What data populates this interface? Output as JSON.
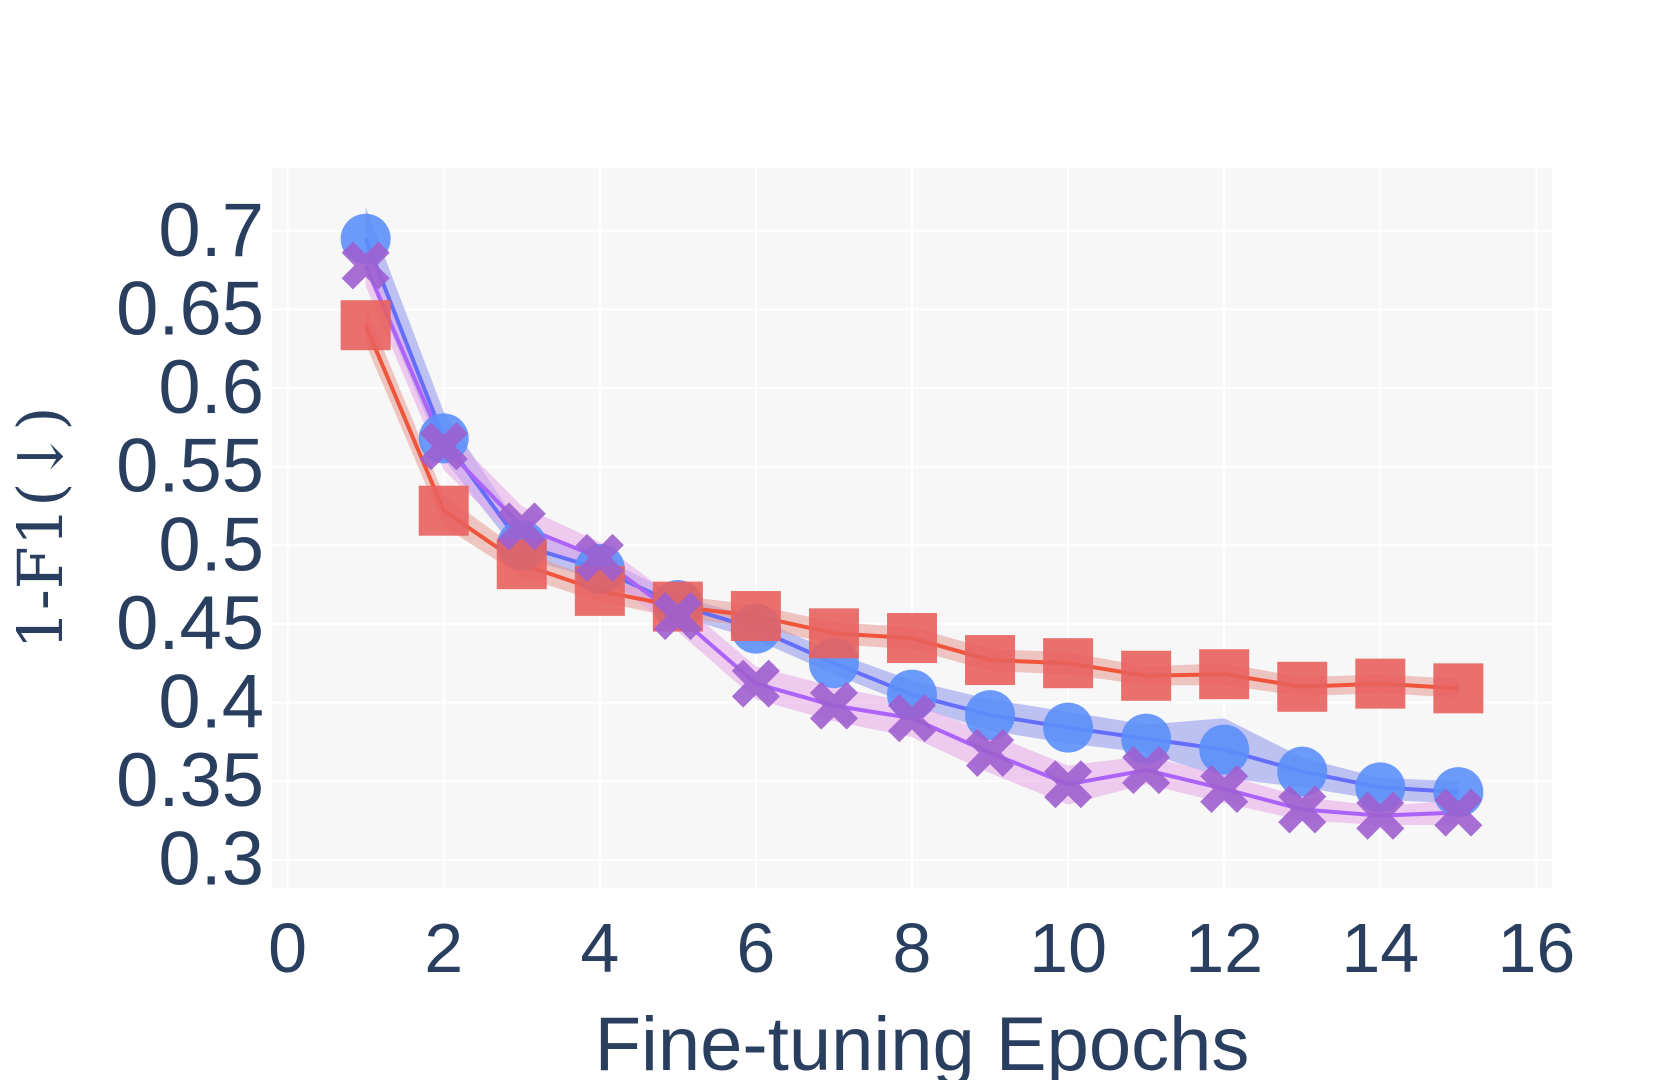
{
  "chart_data": {
    "type": "line",
    "title": "",
    "xlabel": "Fine-tuning Epochs",
    "ylabel": "1-F1(↓)",
    "xlim": [
      -0.2,
      16.2
    ],
    "ylim": [
      0.282,
      0.74
    ],
    "xticks": [
      0,
      2,
      4,
      6,
      8,
      10,
      12,
      14,
      16
    ],
    "yticks": [
      0.3,
      0.35,
      0.4,
      0.45,
      0.5,
      0.55,
      0.6,
      0.65,
      0.7
    ],
    "ytick_labels": [
      "0.3",
      "0.35",
      "0.4",
      "0.45",
      "0.5",
      "0.55",
      "0.6",
      "0.65",
      "0.7"
    ],
    "grid": true,
    "legend": "none",
    "x": [
      1,
      2,
      3,
      4,
      5,
      6,
      7,
      8,
      9,
      10,
      11,
      12,
      13,
      14,
      15
    ],
    "series": [
      {
        "marker": "circle",
        "color": "#636efa",
        "marker_color": "#5b8ff9",
        "band_color": "#8c96ee",
        "values": [
          0.695,
          0.568,
          0.5,
          0.485,
          0.462,
          0.447,
          0.425,
          0.405,
          0.392,
          0.384,
          0.377,
          0.37,
          0.356,
          0.346,
          0.343
        ],
        "lower": [
          0.675,
          0.555,
          0.492,
          0.478,
          0.455,
          0.44,
          0.418,
          0.398,
          0.382,
          0.374,
          0.368,
          0.352,
          0.346,
          0.338,
          0.336
        ],
        "upper": [
          0.715,
          0.585,
          0.51,
          0.493,
          0.468,
          0.454,
          0.432,
          0.414,
          0.402,
          0.394,
          0.386,
          0.39,
          0.365,
          0.352,
          0.35
        ]
      },
      {
        "marker": "square",
        "color": "#ef553b",
        "marker_color": "#e8605e",
        "band_color": "#e89a93",
        "values": [
          0.64,
          0.522,
          0.488,
          0.471,
          0.461,
          0.455,
          0.444,
          0.441,
          0.427,
          0.425,
          0.417,
          0.418,
          0.41,
          0.412,
          0.409
        ],
        "lower": [
          0.628,
          0.512,
          0.48,
          0.464,
          0.454,
          0.448,
          0.437,
          0.434,
          0.42,
          0.418,
          0.411,
          0.411,
          0.404,
          0.406,
          0.403
        ],
        "upper": [
          0.652,
          0.532,
          0.496,
          0.478,
          0.468,
          0.462,
          0.451,
          0.448,
          0.434,
          0.432,
          0.423,
          0.425,
          0.416,
          0.418,
          0.415
        ]
      },
      {
        "marker": "x",
        "color": "#ab63fa",
        "marker_color": "#9d5fcf",
        "band_color": "#e8a6ea",
        "values": [
          0.678,
          0.563,
          0.512,
          0.492,
          0.455,
          0.412,
          0.398,
          0.39,
          0.368,
          0.348,
          0.357,
          0.345,
          0.332,
          0.328,
          0.33
        ],
        "lower": [
          0.665,
          0.548,
          0.5,
          0.482,
          0.445,
          0.402,
          0.388,
          0.378,
          0.355,
          0.335,
          0.348,
          0.336,
          0.325,
          0.322,
          0.322
        ],
        "upper": [
          0.69,
          0.575,
          0.525,
          0.502,
          0.465,
          0.423,
          0.41,
          0.4,
          0.38,
          0.36,
          0.366,
          0.354,
          0.34,
          0.334,
          0.338
        ]
      }
    ]
  }
}
